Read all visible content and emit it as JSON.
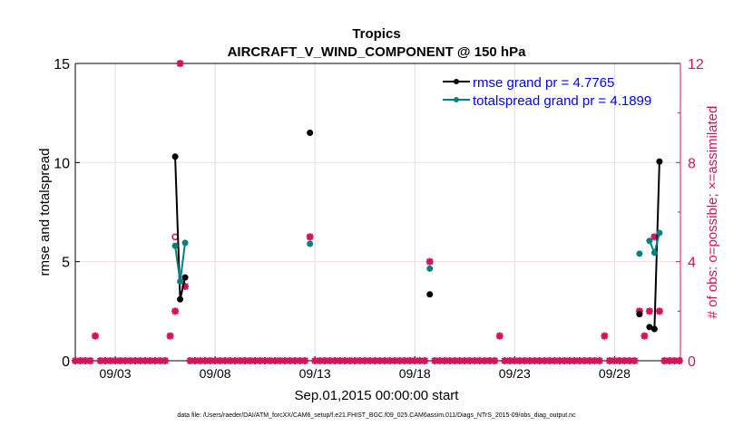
{
  "chart_data": {
    "type": "line",
    "title": "Tropics",
    "subtitle": "AIRCRAFT_V_WIND_COMPONENT @ 150 hPa",
    "xlabel": "Sep.01,2015 00:00:00 start",
    "ylabel": "rmse and totalspread",
    "y2label": "# of obs: o=possible; ×=assimilated",
    "xlim": [
      0,
      30.3
    ],
    "ylim": [
      0,
      15
    ],
    "y2lim": [
      0,
      12
    ],
    "xticks": [
      {
        "v": 2,
        "label": "09/03"
      },
      {
        "v": 7,
        "label": "09/08"
      },
      {
        "v": 12,
        "label": "09/13"
      },
      {
        "v": 17,
        "label": "09/18"
      },
      {
        "v": 22,
        "label": "09/23"
      },
      {
        "v": 27,
        "label": "09/28"
      }
    ],
    "yticks": [
      {
        "v": 0,
        "label": "0"
      },
      {
        "v": 5,
        "label": "5"
      },
      {
        "v": 10,
        "label": "10"
      },
      {
        "v": 15,
        "label": "15"
      }
    ],
    "y2ticks": [
      {
        "v": 0,
        "label": "0"
      },
      {
        "v": 4,
        "label": "4"
      },
      {
        "v": 8,
        "label": "8"
      },
      {
        "v": 12,
        "label": "12"
      }
    ],
    "grid": true,
    "legend_position": "top-right",
    "series": [
      {
        "name": "rmse grand pr = 4.7765",
        "color": "#000000",
        "x": [
          5.0,
          5.25,
          5.5,
          11.75,
          17.75,
          28.25,
          28.75,
          29.0,
          29.25
        ],
        "values": [
          10.3,
          3.1,
          4.2,
          11.5,
          3.35,
          2.35,
          1.7,
          1.6,
          10.05
        ],
        "connect": [
          [
            0,
            1,
            2
          ],
          [
            6,
            7,
            8
          ]
        ]
      },
      {
        "name": "totalspread grand pr = 4.1899",
        "color": "#008080",
        "x": [
          5.0,
          5.25,
          5.5,
          11.75,
          17.75,
          28.25,
          28.75,
          29.0,
          29.25
        ],
        "values": [
          5.8,
          4.0,
          5.95,
          5.9,
          4.65,
          5.4,
          6.05,
          5.45,
          6.45
        ],
        "connect": [
          [
            0,
            1,
            2
          ],
          [
            6,
            7,
            8
          ]
        ]
      }
    ],
    "obs_counts": {
      "color": "#d4145a",
      "bin_days": 0.25,
      "nbins": 122,
      "nonzero_assimilated": {
        "4": 1,
        "19": 1,
        "20": 2,
        "21": 12,
        "22": 3,
        "47": 5,
        "71": 4,
        "85": 1,
        "106": 1,
        "113": 2,
        "114": 1,
        "115": 2,
        "116": 5,
        "117": 2
      },
      "nonzero_possible": {
        "4": 1,
        "19": 1,
        "20": 5,
        "21": 12,
        "22": 3,
        "47": 5,
        "71": 4,
        "85": 1,
        "106": 1,
        "113": 2,
        "114": 1,
        "115": 2,
        "116": 5,
        "117": 2
      }
    },
    "footnote": "data file: /Users/raeder/DAI/ATM_forcXX/CAM6_setup/f.e21.FHIST_BGC.f09_025.CAM6assim.011/Diags_NTrS_2015-09/obs_diag_output.nc"
  }
}
